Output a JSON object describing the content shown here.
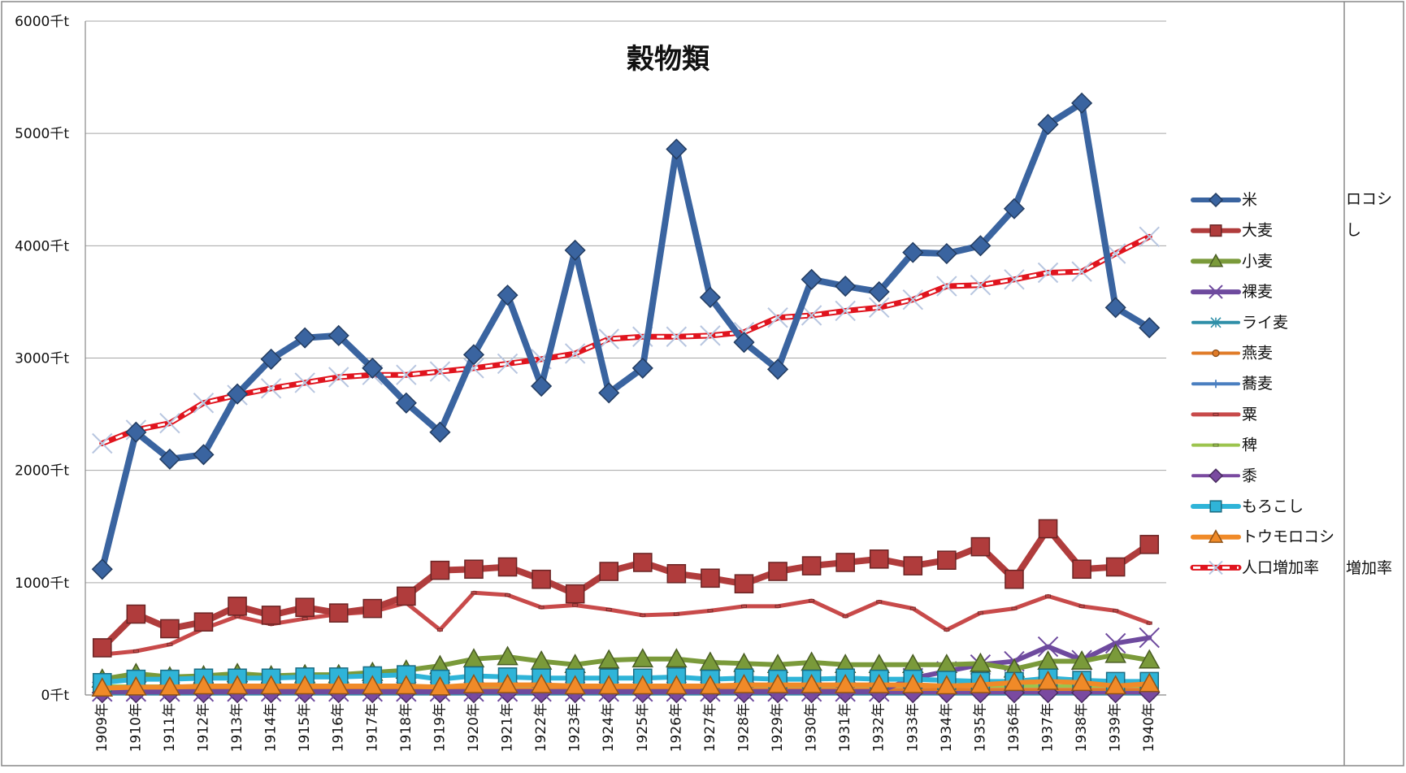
{
  "chart_data": {
    "type": "line",
    "title": "穀物類",
    "xlabel": "",
    "ylabel": "",
    "ylim": [
      0,
      6000
    ],
    "y_ticks": [
      "0千t",
      "1000千t",
      "2000千t",
      "3000千t",
      "4000千t",
      "5000千t",
      "6000千t"
    ],
    "y_tick_values": [
      0,
      1000,
      2000,
      3000,
      4000,
      5000,
      6000
    ],
    "grid": true,
    "legend_position": "right",
    "categories": [
      "1909年",
      "1910年",
      "1911年",
      "1912年",
      "1913年",
      "1914年",
      "1915年",
      "1916年",
      "1917年",
      "1918年",
      "1919年",
      "1920年",
      "1921年",
      "1922年",
      "1923年",
      "1924年",
      "1925年",
      "1926年",
      "1927年",
      "1928年",
      "1929年",
      "1930年",
      "1931年",
      "1932年",
      "1933年",
      "1934年",
      "1935年",
      "1936年",
      "1937年",
      "1938年",
      "1939年",
      "1940年"
    ],
    "series": [
      {
        "name": "米",
        "color": "#3A64A0",
        "marker": "diamond",
        "width": 8,
        "values": [
          1120,
          2340,
          2100,
          2140,
          2680,
          2990,
          3180,
          3200,
          2910,
          2600,
          2340,
          3030,
          3560,
          2750,
          3960,
          2690,
          2910,
          4860,
          3540,
          3140,
          2900,
          3700,
          3640,
          3590,
          3940,
          3930,
          4000,
          4330,
          5080,
          5270,
          3450,
          3270
        ]
      },
      {
        "name": "大麦",
        "color": "#B03C3C",
        "marker": "square",
        "width": 8,
        "values": [
          420,
          720,
          590,
          650,
          790,
          710,
          780,
          730,
          770,
          880,
          1110,
          1120,
          1140,
          1030,
          900,
          1100,
          1180,
          1080,
          1040,
          990,
          1100,
          1150,
          1180,
          1210,
          1150,
          1200,
          1320,
          1030,
          1480,
          1120,
          1140,
          1340
        ]
      },
      {
        "name": "小麦",
        "color": "#7A9A3A",
        "marker": "triangle",
        "width": 6,
        "values": [
          140,
          190,
          160,
          170,
          190,
          170,
          180,
          180,
          200,
          220,
          260,
          320,
          340,
          300,
          270,
          310,
          320,
          320,
          290,
          280,
          270,
          290,
          270,
          270,
          270,
          270,
          280,
          230,
          300,
          300,
          360,
          310
        ]
      },
      {
        "name": "裸麦",
        "color": "#6E4A9E",
        "marker": "x",
        "width": 6,
        "values": [
          30,
          30,
          30,
          30,
          30,
          30,
          30,
          30,
          30,
          30,
          30,
          30,
          30,
          30,
          30,
          30,
          30,
          30,
          30,
          30,
          30,
          30,
          30,
          30,
          150,
          210,
          270,
          300,
          430,
          310,
          460,
          510
        ]
      },
      {
        "name": "ライ麦",
        "color": "#2F8FA8",
        "marker": "star",
        "width": 4,
        "values": [
          10,
          10,
          10,
          10,
          10,
          10,
          10,
          10,
          10,
          10,
          10,
          10,
          10,
          10,
          10,
          10,
          10,
          10,
          10,
          10,
          10,
          10,
          10,
          10,
          10,
          10,
          10,
          10,
          10,
          10,
          10,
          10
        ]
      },
      {
        "name": "燕麦",
        "color": "#E07B28",
        "marker": "circle",
        "width": 4,
        "values": [
          50,
          50,
          50,
          50,
          50,
          50,
          50,
          50,
          50,
          50,
          50,
          50,
          50,
          50,
          50,
          50,
          50,
          50,
          50,
          50,
          50,
          50,
          50,
          50,
          50,
          50,
          50,
          50,
          50,
          50,
          50,
          50
        ]
      },
      {
        "name": "蕎麦",
        "color": "#4A7FC0",
        "marker": "plus",
        "width": 4,
        "values": [
          40,
          40,
          40,
          40,
          40,
          40,
          40,
          40,
          40,
          40,
          40,
          40,
          40,
          40,
          40,
          40,
          40,
          40,
          40,
          40,
          40,
          40,
          40,
          40,
          40,
          40,
          40,
          40,
          40,
          40,
          40,
          40
        ]
      },
      {
        "name": "粟",
        "color": "#C84A4A",
        "marker": "dash",
        "width": 5,
        "values": [
          360,
          390,
          450,
          590,
          700,
          630,
          680,
          720,
          740,
          820,
          580,
          910,
          890,
          780,
          800,
          760,
          710,
          720,
          750,
          790,
          790,
          840,
          700,
          830,
          770,
          580,
          730,
          770,
          880,
          790,
          750,
          640
        ]
      },
      {
        "name": "稗",
        "color": "#9CC44E",
        "marker": "dash",
        "width": 4,
        "values": [
          80,
          80,
          80,
          80,
          80,
          80,
          80,
          80,
          80,
          80,
          80,
          80,
          80,
          80,
          80,
          80,
          80,
          80,
          80,
          80,
          80,
          80,
          80,
          80,
          80,
          80,
          80,
          80,
          80,
          80,
          80,
          80
        ]
      },
      {
        "name": "黍",
        "color": "#7A4AA0",
        "marker": "diamond",
        "width": 4,
        "values": [
          20,
          20,
          20,
          20,
          20,
          20,
          20,
          20,
          20,
          20,
          20,
          20,
          20,
          20,
          20,
          20,
          20,
          20,
          20,
          20,
          20,
          20,
          20,
          20,
          20,
          20,
          20,
          20,
          20,
          20,
          20,
          20
        ]
      },
      {
        "name": "もろこし",
        "color": "#2FB4D8",
        "marker": "square",
        "width": 6,
        "values": [
          110,
          140,
          140,
          150,
          150,
          150,
          160,
          160,
          170,
          180,
          140,
          170,
          160,
          150,
          150,
          150,
          150,
          160,
          140,
          150,
          140,
          140,
          150,
          140,
          140,
          130,
          120,
          120,
          150,
          130,
          120,
          120
        ]
      },
      {
        "name": "トウモロコシ",
        "color": "#F08A28",
        "marker": "triangle",
        "width": 6,
        "values": [
          60,
          70,
          70,
          80,
          80,
          80,
          80,
          80,
          80,
          80,
          70,
          90,
          90,
          90,
          80,
          80,
          80,
          80,
          80,
          90,
          90,
          90,
          90,
          90,
          90,
          80,
          90,
          110,
          120,
          110,
          80,
          100
        ]
      },
      {
        "name": "人口増加率",
        "color": "#E0141E",
        "marker": "x",
        "width": 5,
        "dashed": true,
        "values": [
          2240,
          2360,
          2420,
          2600,
          2670,
          2730,
          2780,
          2830,
          2850,
          2850,
          2880,
          2910,
          2950,
          2990,
          3040,
          3170,
          3190,
          3190,
          3200,
          3230,
          3360,
          3380,
          3420,
          3450,
          3520,
          3640,
          3650,
          3700,
          3760,
          3770,
          3930,
          4080
        ]
      }
    ]
  },
  "side_fragments": [
    "ロコシ",
    "し",
    "増加率"
  ]
}
